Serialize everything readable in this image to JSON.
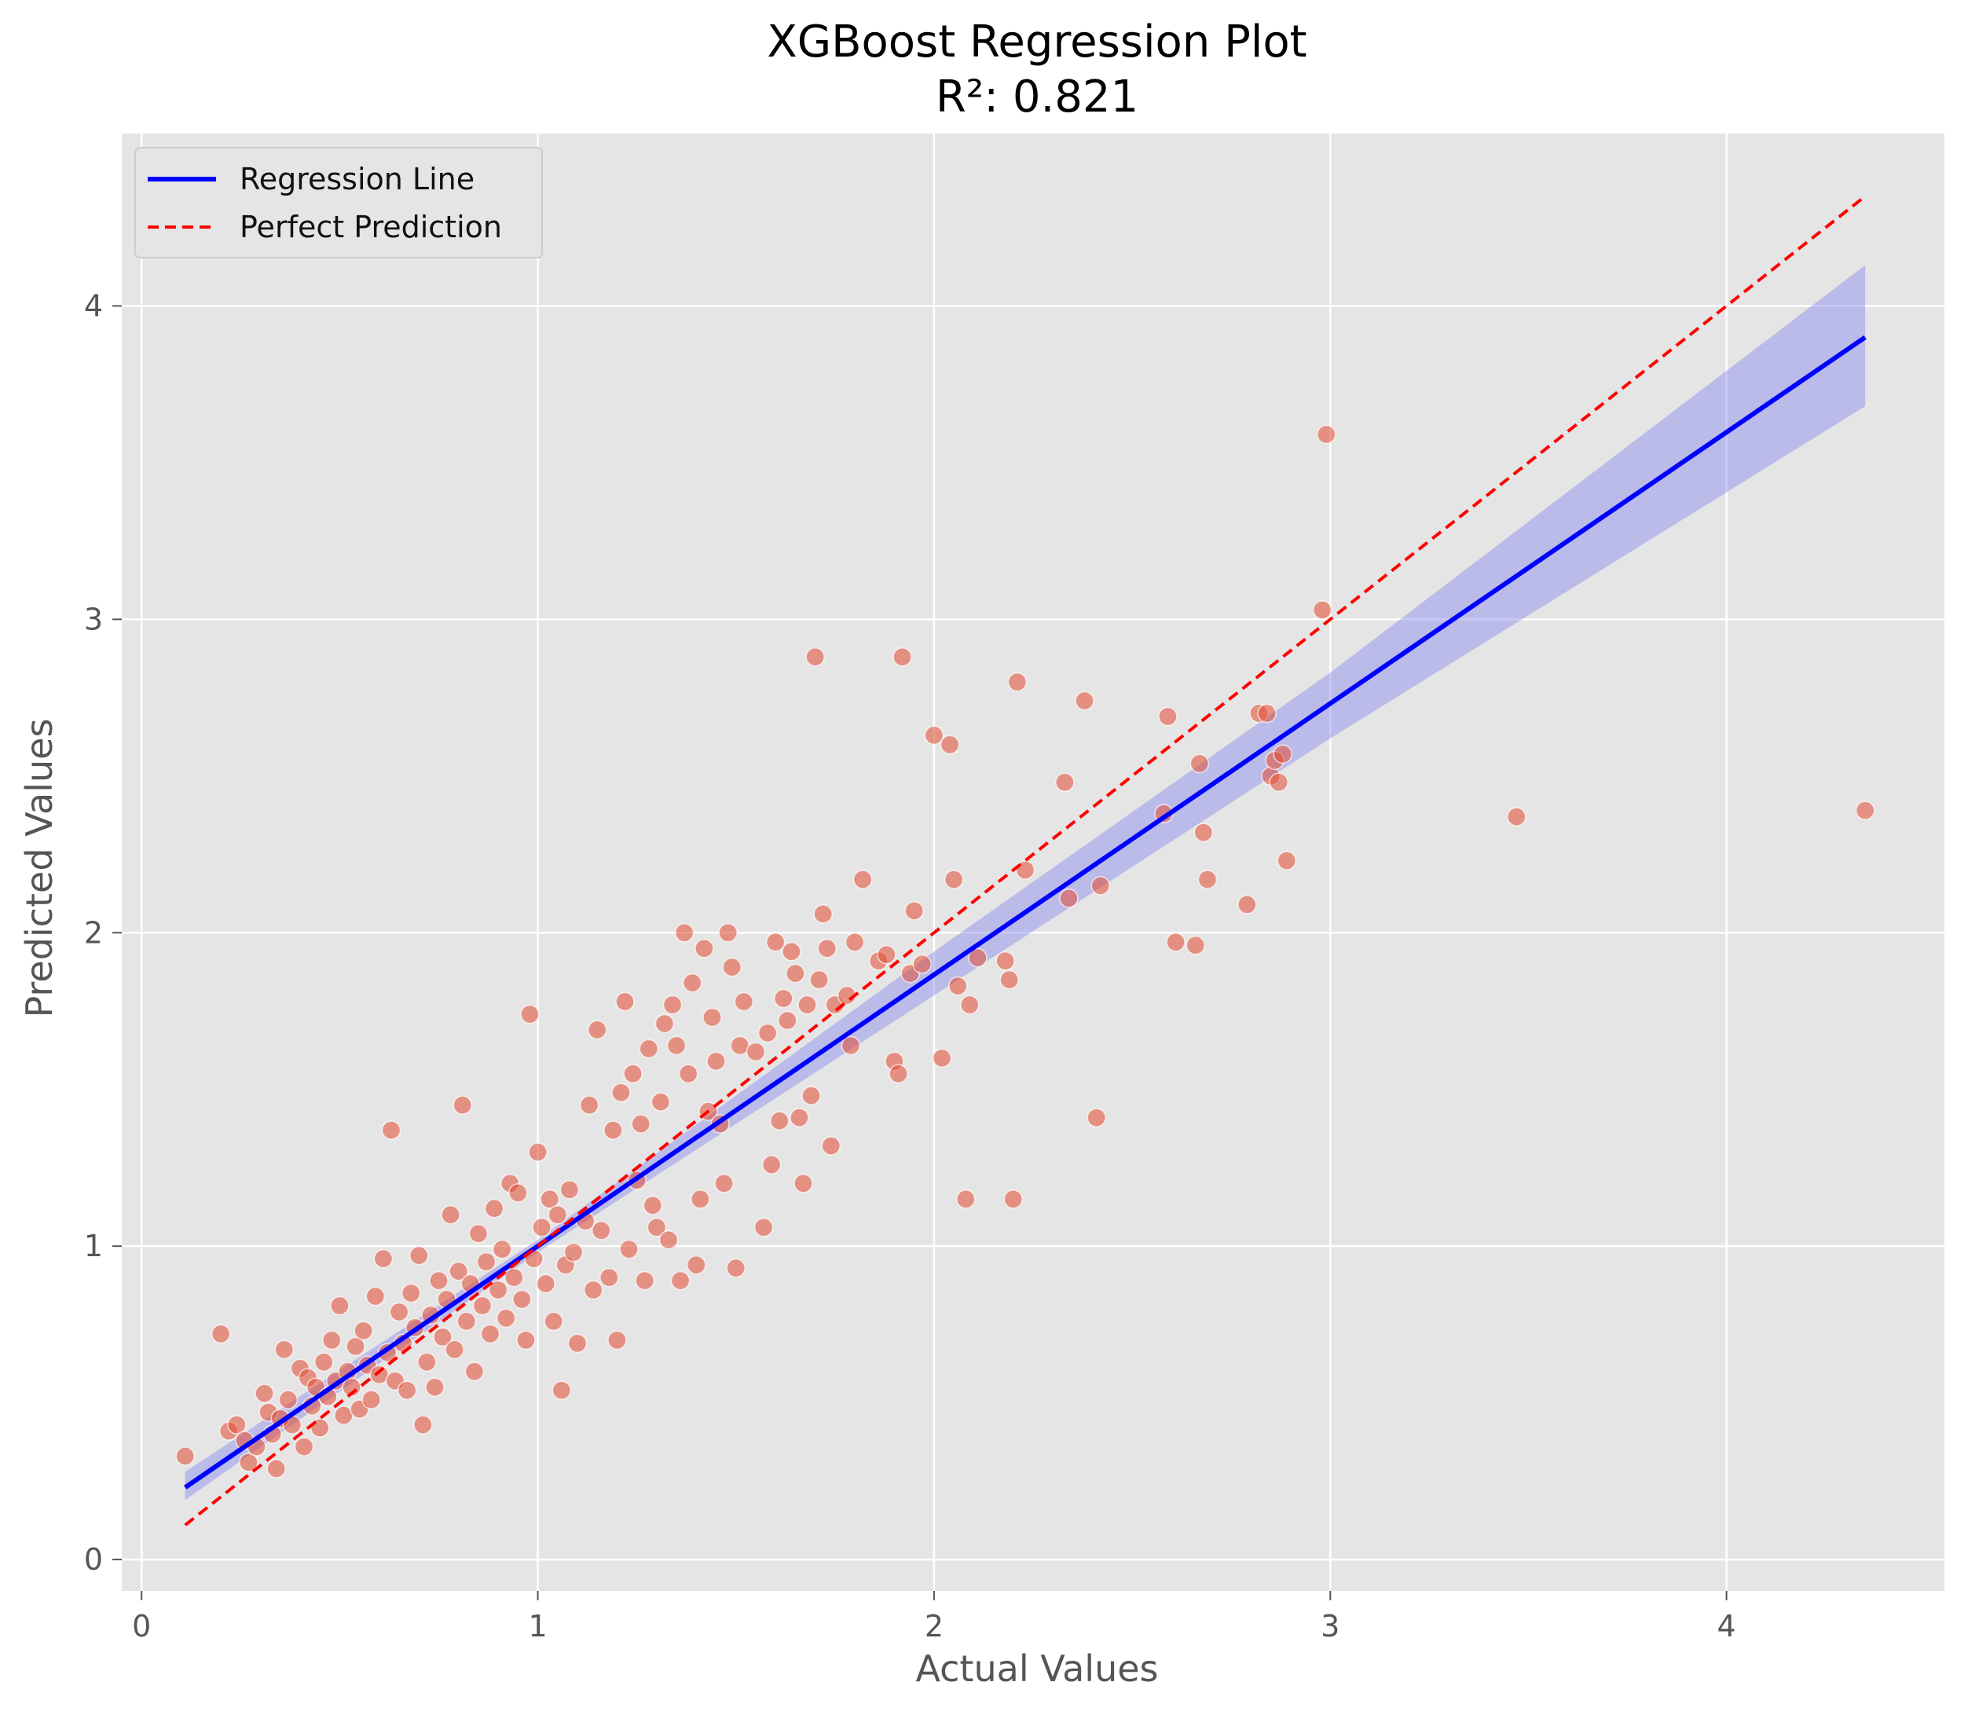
{
  "chart_data": {
    "type": "scatter",
    "title": "XGBoost Regression Plot",
    "subtitle": "R²: 0.821",
    "xlabel": "Actual Values",
    "ylabel": "Predicted Values",
    "xlim": [
      -0.05,
      4.55
    ],
    "ylim": [
      -0.1,
      4.55
    ],
    "x_ticks": [
      0,
      1,
      2,
      3,
      4
    ],
    "y_ticks": [
      0,
      1,
      2,
      3,
      4
    ],
    "grid": true,
    "legend_position": "top-left",
    "colors": {
      "background": "#e5e5e5",
      "grid": "#ffffff",
      "points": "#e24a33",
      "regression_line": "#0000ff",
      "confidence_band": "#8888ee",
      "perfect_line": "#ff0000"
    },
    "legend": [
      {
        "label": "Regression Line",
        "style": "solid",
        "color": "#0000ff"
      },
      {
        "label": "Perfect Prediction",
        "style": "dashed",
        "color": "#ff0000"
      }
    ],
    "regression_line": {
      "x": [
        0.11,
        4.35
      ],
      "y": [
        0.23,
        3.9
      ]
    },
    "confidence_band": {
      "x": [
        0.11,
        1.0,
        2.0,
        3.0,
        4.35
      ],
      "lower": [
        0.19,
        0.98,
        1.8,
        2.62,
        3.68
      ],
      "upper": [
        0.28,
        1.02,
        1.94,
        2.83,
        4.13
      ]
    },
    "perfect_line": {
      "x": [
        0.11,
        4.35
      ],
      "y": [
        0.11,
        4.35
      ]
    },
    "points": [
      [
        0.11,
        0.33
      ],
      [
        0.2,
        0.72
      ],
      [
        0.22,
        0.41
      ],
      [
        0.24,
        0.43
      ],
      [
        0.26,
        0.38
      ],
      [
        0.27,
        0.31
      ],
      [
        0.29,
        0.36
      ],
      [
        0.31,
        0.53
      ],
      [
        0.32,
        0.47
      ],
      [
        0.33,
        0.4
      ],
      [
        0.34,
        0.29
      ],
      [
        0.35,
        0.45
      ],
      [
        0.36,
        0.67
      ],
      [
        0.37,
        0.51
      ],
      [
        0.38,
        0.43
      ],
      [
        0.4,
        0.61
      ],
      [
        0.41,
        0.36
      ],
      [
        0.42,
        0.58
      ],
      [
        0.43,
        0.49
      ],
      [
        0.44,
        0.55
      ],
      [
        0.45,
        0.42
      ],
      [
        0.46,
        0.63
      ],
      [
        0.47,
        0.52
      ],
      [
        0.48,
        0.7
      ],
      [
        0.49,
        0.57
      ],
      [
        0.5,
        0.81
      ],
      [
        0.51,
        0.46
      ],
      [
        0.52,
        0.6
      ],
      [
        0.53,
        0.55
      ],
      [
        0.54,
        0.68
      ],
      [
        0.55,
        0.48
      ],
      [
        0.56,
        0.73
      ],
      [
        0.57,
        0.62
      ],
      [
        0.58,
        0.51
      ],
      [
        0.59,
        0.84
      ],
      [
        0.6,
        0.59
      ],
      [
        0.61,
        0.96
      ],
      [
        0.62,
        0.66
      ],
      [
        0.63,
        1.37
      ],
      [
        0.64,
        0.57
      ],
      [
        0.65,
        0.79
      ],
      [
        0.66,
        0.69
      ],
      [
        0.67,
        0.54
      ],
      [
        0.68,
        0.85
      ],
      [
        0.69,
        0.74
      ],
      [
        0.7,
        0.97
      ],
      [
        0.71,
        0.43
      ],
      [
        0.72,
        0.63
      ],
      [
        0.73,
        0.78
      ],
      [
        0.74,
        0.55
      ],
      [
        0.75,
        0.89
      ],
      [
        0.76,
        0.71
      ],
      [
        0.77,
        0.83
      ],
      [
        0.78,
        1.1
      ],
      [
        0.79,
        0.67
      ],
      [
        0.8,
        0.92
      ],
      [
        0.81,
        1.45
      ],
      [
        0.82,
        0.76
      ],
      [
        0.83,
        0.88
      ],
      [
        0.84,
        0.6
      ],
      [
        0.85,
        1.04
      ],
      [
        0.86,
        0.81
      ],
      [
        0.87,
        0.95
      ],
      [
        0.88,
        0.72
      ],
      [
        0.89,
        1.12
      ],
      [
        0.9,
        0.86
      ],
      [
        0.91,
        0.99
      ],
      [
        0.92,
        0.77
      ],
      [
        0.93,
        1.2
      ],
      [
        0.94,
        0.9
      ],
      [
        0.95,
        1.17
      ],
      [
        0.96,
        0.83
      ],
      [
        0.97,
        0.7
      ],
      [
        0.98,
        1.74
      ],
      [
        0.99,
        0.96
      ],
      [
        1.0,
        1.3
      ],
      [
        1.01,
        1.06
      ],
      [
        1.02,
        0.88
      ],
      [
        1.03,
        1.15
      ],
      [
        1.04,
        0.76
      ],
      [
        1.05,
        1.1
      ],
      [
        1.06,
        0.54
      ],
      [
        1.07,
        0.94
      ],
      [
        1.08,
        1.18
      ],
      [
        1.09,
        0.98
      ],
      [
        1.1,
        0.69
      ],
      [
        1.12,
        1.08
      ],
      [
        1.13,
        1.45
      ],
      [
        1.14,
        0.86
      ],
      [
        1.15,
        1.69
      ],
      [
        1.16,
        1.05
      ],
      [
        1.18,
        0.9
      ],
      [
        1.19,
        1.37
      ],
      [
        1.2,
        0.7
      ],
      [
        1.21,
        1.49
      ],
      [
        1.22,
        1.78
      ],
      [
        1.23,
        0.99
      ],
      [
        1.24,
        1.55
      ],
      [
        1.25,
        1.21
      ],
      [
        1.26,
        1.39
      ],
      [
        1.27,
        0.89
      ],
      [
        1.28,
        1.63
      ],
      [
        1.29,
        1.13
      ],
      [
        1.3,
        1.06
      ],
      [
        1.31,
        1.46
      ],
      [
        1.32,
        1.71
      ],
      [
        1.33,
        1.02
      ],
      [
        1.34,
        1.77
      ],
      [
        1.35,
        1.64
      ],
      [
        1.36,
        0.89
      ],
      [
        1.37,
        2.0
      ],
      [
        1.38,
        1.55
      ],
      [
        1.39,
        1.84
      ],
      [
        1.4,
        0.94
      ],
      [
        1.41,
        1.15
      ],
      [
        1.42,
        1.95
      ],
      [
        1.43,
        1.43
      ],
      [
        1.44,
        1.73
      ],
      [
        1.45,
        1.59
      ],
      [
        1.46,
        1.39
      ],
      [
        1.47,
        1.2
      ],
      [
        1.48,
        2.0
      ],
      [
        1.49,
        1.89
      ],
      [
        1.5,
        0.93
      ],
      [
        1.51,
        1.64
      ],
      [
        1.52,
        1.78
      ],
      [
        1.55,
        1.62
      ],
      [
        1.57,
        1.06
      ],
      [
        1.58,
        1.68
      ],
      [
        1.59,
        1.26
      ],
      [
        1.6,
        1.97
      ],
      [
        1.61,
        1.4
      ],
      [
        1.62,
        1.79
      ],
      [
        1.63,
        1.72
      ],
      [
        1.64,
        1.94
      ],
      [
        1.65,
        1.87
      ],
      [
        1.66,
        1.41
      ],
      [
        1.67,
        1.2
      ],
      [
        1.68,
        1.77
      ],
      [
        1.69,
        1.48
      ],
      [
        1.7,
        2.88
      ],
      [
        1.71,
        1.85
      ],
      [
        1.72,
        2.06
      ],
      [
        1.73,
        1.95
      ],
      [
        1.74,
        1.32
      ],
      [
        1.75,
        1.77
      ],
      [
        1.78,
        1.8
      ],
      [
        1.79,
        1.64
      ],
      [
        1.8,
        1.97
      ],
      [
        1.82,
        2.17
      ],
      [
        1.86,
        1.91
      ],
      [
        1.88,
        1.93
      ],
      [
        1.9,
        1.59
      ],
      [
        1.91,
        1.55
      ],
      [
        1.92,
        2.88
      ],
      [
        1.94,
        1.87
      ],
      [
        1.95,
        2.07
      ],
      [
        1.97,
        1.9
      ],
      [
        2.0,
        2.63
      ],
      [
        2.02,
        1.6
      ],
      [
        2.04,
        2.6
      ],
      [
        2.05,
        2.17
      ],
      [
        2.06,
        1.83
      ],
      [
        2.08,
        1.15
      ],
      [
        2.09,
        1.77
      ],
      [
        2.11,
        1.92
      ],
      [
        2.18,
        1.91
      ],
      [
        2.19,
        1.85
      ],
      [
        2.2,
        1.15
      ],
      [
        2.21,
        2.8
      ],
      [
        2.23,
        2.2
      ],
      [
        2.33,
        2.48
      ],
      [
        2.34,
        2.11
      ],
      [
        2.38,
        2.74
      ],
      [
        2.41,
        1.41
      ],
      [
        2.42,
        2.15
      ],
      [
        2.58,
        2.38
      ],
      [
        2.59,
        2.69
      ],
      [
        2.61,
        1.97
      ],
      [
        2.66,
        1.96
      ],
      [
        2.67,
        2.54
      ],
      [
        2.68,
        2.32
      ],
      [
        2.69,
        2.17
      ],
      [
        2.79,
        2.09
      ],
      [
        2.82,
        2.7
      ],
      [
        2.84,
        2.7
      ],
      [
        2.85,
        2.5
      ],
      [
        2.86,
        2.55
      ],
      [
        2.87,
        2.48
      ],
      [
        2.88,
        2.57
      ],
      [
        2.89,
        2.23
      ],
      [
        2.98,
        3.03
      ],
      [
        2.99,
        3.59
      ],
      [
        3.47,
        2.37
      ],
      [
        4.35,
        2.39
      ]
    ]
  }
}
